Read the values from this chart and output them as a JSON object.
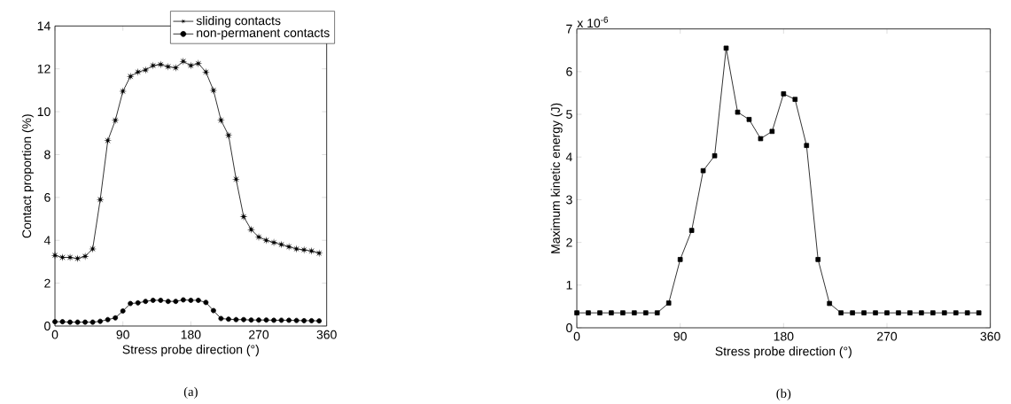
{
  "chart_data": [
    {
      "type": "line",
      "xlabel": "Stress probe direction (°)",
      "ylabel": "Contact proportion (%)",
      "x": [
        0,
        10,
        20,
        30,
        40,
        50,
        60,
        70,
        80,
        90,
        100,
        110,
        120,
        130,
        140,
        150,
        160,
        170,
        180,
        190,
        200,
        210,
        220,
        230,
        240,
        250,
        260,
        270,
        280,
        290,
        300,
        310,
        320,
        330,
        340,
        350
      ],
      "series": [
        {
          "name": "sliding contacts",
          "color": "#000000",
          "marker": "star",
          "values": [
            3.3,
            3.2,
            3.2,
            3.15,
            3.25,
            3.6,
            5.9,
            8.65,
            9.6,
            10.95,
            11.65,
            11.85,
            11.95,
            12.15,
            12.2,
            12.1,
            12.05,
            12.35,
            12.15,
            12.25,
            11.85,
            11.0,
            9.6,
            8.9,
            6.85,
            5.1,
            4.5,
            4.15,
            4.0,
            3.9,
            3.8,
            3.7,
            3.6,
            3.55,
            3.5,
            3.4
          ]
        },
        {
          "name": "non-permanent contacts",
          "color": "#000000",
          "marker": "circle",
          "values": [
            0.2,
            0.2,
            0.18,
            0.18,
            0.18,
            0.18,
            0.22,
            0.3,
            0.38,
            0.7,
            1.05,
            1.08,
            1.15,
            1.2,
            1.2,
            1.15,
            1.15,
            1.22,
            1.2,
            1.2,
            1.1,
            0.72,
            0.35,
            0.32,
            0.3,
            0.3,
            0.28,
            0.28,
            0.28,
            0.27,
            0.27,
            0.27,
            0.26,
            0.25,
            0.25,
            0.24
          ]
        }
      ],
      "xlim": [
        0,
        360
      ],
      "xticks": [
        0,
        90,
        180,
        270,
        360
      ],
      "ylim": [
        0,
        14
      ],
      "yticks": [
        0,
        2,
        4,
        6,
        8,
        10,
        12,
        14
      ],
      "legend": "top right",
      "line_style": "solid",
      "grid": false,
      "annotations": [
        "(a)"
      ]
    },
    {
      "type": "line",
      "xlabel": "Stress probe direction (°)",
      "ylabel": "Maximum kinetic energy (J)",
      "x": [
        0,
        10,
        20,
        30,
        40,
        50,
        60,
        70,
        80,
        90,
        100,
        110,
        120,
        130,
        140,
        150,
        160,
        170,
        180,
        190,
        200,
        210,
        220,
        230,
        240,
        250,
        260,
        270,
        280,
        290,
        300,
        310,
        320,
        330,
        340,
        350
      ],
      "series": [
        {
          "color": "#000000",
          "marker": "square",
          "values": [
            0.35,
            0.35,
            0.35,
            0.35,
            0.35,
            0.35,
            0.35,
            0.35,
            0.58,
            1.6,
            2.28,
            3.68,
            4.03,
            6.55,
            5.05,
            4.88,
            4.43,
            4.6,
            5.48,
            5.35,
            4.27,
            1.6,
            0.57,
            0.35,
            0.35,
            0.35,
            0.35,
            0.35,
            0.35,
            0.35,
            0.35,
            0.35,
            0.35,
            0.35,
            0.35,
            0.35
          ]
        }
      ],
      "xlim": [
        0,
        360
      ],
      "xticks": [
        0,
        90,
        180,
        270,
        360
      ],
      "ylim": [
        0,
        7
      ],
      "yticks": [
        0,
        1,
        2,
        3,
        4,
        5,
        6,
        7
      ],
      "line_style": "solid",
      "grid": false,
      "annotations": [
        "x 10$^{-6}$",
        "(b)"
      ]
    }
  ]
}
